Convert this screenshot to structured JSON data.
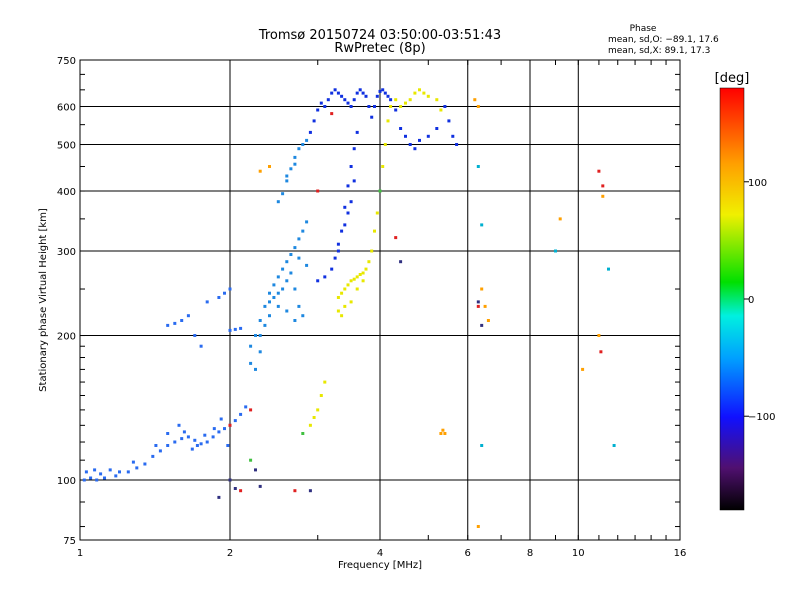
{
  "chart_data": {
    "type": "scatter",
    "title": "Tromsø 20150724 03:50:00-03:51:43",
    "subtitle": "RwPretec (8p)",
    "xlabel": "Frequency [MHz]",
    "ylabel": "Stationary phase Virtual Height [km]",
    "x_scale": "log",
    "y_scale": "log",
    "xlim": [
      1,
      16
    ],
    "ylim": [
      75,
      750
    ],
    "x_ticks": [
      1,
      2,
      4,
      6,
      8,
      10,
      16
    ],
    "y_ticks": [
      75,
      100,
      200,
      300,
      400,
      500,
      600,
      750
    ],
    "x_tick_labels": [
      "1",
      "2",
      "4",
      "6",
      "8",
      "10",
      "16"
    ],
    "y_tick_labels": [
      "75",
      "100",
      "200",
      "300",
      "400",
      "500",
      "600",
      "750"
    ],
    "grid": true,
    "phase_info": {
      "title": "Phase",
      "line_o": "mean, sd,O: −89.1, 17.6",
      "line_x": "mean, sd,X:  89.1, 17.3"
    },
    "colorbar": {
      "label": "[deg]",
      "range": [
        -180,
        180
      ],
      "ticks": [
        100,
        0,
        -100
      ],
      "tick_labels": [
        "100",
        "0",
        "−100"
      ]
    },
    "series": [
      {
        "color": "#2a6bf0",
        "points": [
          [
            1.02,
            100
          ],
          [
            1.05,
            101
          ],
          [
            1.08,
            100
          ],
          [
            1.12,
            101
          ],
          [
            1.18,
            102
          ],
          [
            1.25,
            104
          ],
          [
            1.3,
            106
          ],
          [
            1.35,
            108
          ],
          [
            1.4,
            112
          ],
          [
            1.45,
            115
          ],
          [
            1.5,
            118
          ],
          [
            1.55,
            120
          ],
          [
            1.6,
            122
          ],
          [
            1.65,
            123
          ],
          [
            1.7,
            121
          ],
          [
            1.75,
            119
          ],
          [
            1.8,
            120
          ],
          [
            1.85,
            123
          ],
          [
            1.9,
            126
          ],
          [
            1.95,
            128
          ],
          [
            2.0,
            130
          ],
          [
            2.05,
            133
          ],
          [
            2.1,
            137
          ],
          [
            2.15,
            142
          ],
          [
            1.03,
            104
          ],
          [
            1.07,
            105
          ],
          [
            1.1,
            103
          ],
          [
            1.15,
            105
          ],
          [
            1.2,
            104
          ],
          [
            1.28,
            109
          ],
          [
            1.42,
            118
          ],
          [
            1.5,
            125
          ],
          [
            1.58,
            130
          ],
          [
            1.62,
            126
          ],
          [
            1.68,
            116
          ],
          [
            1.72,
            118
          ],
          [
            1.78,
            124
          ],
          [
            1.86,
            128
          ],
          [
            1.92,
            134
          ],
          [
            1.98,
            118
          ],
          [
            1.5,
            210
          ],
          [
            1.55,
            212
          ],
          [
            1.6,
            215
          ],
          [
            1.65,
            220
          ],
          [
            1.7,
            200
          ],
          [
            1.75,
            190
          ],
          [
            1.8,
            235
          ],
          [
            1.9,
            240
          ],
          [
            1.95,
            245
          ],
          [
            2.0,
            250
          ],
          [
            2.0,
            205
          ],
          [
            2.05,
            206
          ],
          [
            2.1,
            207
          ]
        ]
      },
      {
        "color": "#1e88e0",
        "points": [
          [
            2.2,
            190
          ],
          [
            2.25,
            200
          ],
          [
            2.3,
            215
          ],
          [
            2.35,
            230
          ],
          [
            2.4,
            245
          ],
          [
            2.45,
            255
          ],
          [
            2.5,
            265
          ],
          [
            2.55,
            275
          ],
          [
            2.6,
            285
          ],
          [
            2.65,
            295
          ],
          [
            2.7,
            305
          ],
          [
            2.75,
            318
          ],
          [
            2.8,
            330
          ],
          [
            2.85,
            345
          ],
          [
            2.2,
            175
          ],
          [
            2.25,
            170
          ],
          [
            2.3,
            185
          ],
          [
            2.35,
            210
          ],
          [
            2.4,
            220
          ],
          [
            2.45,
            240
          ],
          [
            2.5,
            230
          ],
          [
            2.55,
            250
          ],
          [
            2.6,
            260
          ],
          [
            2.65,
            270
          ],
          [
            2.7,
            250
          ],
          [
            2.75,
            230
          ],
          [
            2.8,
            220
          ],
          [
            2.85,
            280
          ],
          [
            2.3,
            200
          ],
          [
            2.4,
            235
          ],
          [
            2.5,
            245
          ],
          [
            2.6,
            225
          ],
          [
            2.7,
            215
          ],
          [
            2.75,
            290
          ],
          [
            2.5,
            380
          ],
          [
            2.55,
            395
          ],
          [
            2.6,
            420
          ],
          [
            2.65,
            445
          ],
          [
            2.7,
            470
          ],
          [
            2.75,
            490
          ],
          [
            2.8,
            500
          ],
          [
            2.85,
            510
          ],
          [
            2.6,
            430
          ],
          [
            2.7,
            455
          ]
        ]
      },
      {
        "color": "#1030e0",
        "points": [
          [
            2.9,
            530
          ],
          [
            2.95,
            560
          ],
          [
            3.0,
            590
          ],
          [
            3.05,
            610
          ],
          [
            3.1,
            600
          ],
          [
            3.15,
            620
          ],
          [
            3.2,
            640
          ],
          [
            3.25,
            650
          ],
          [
            3.3,
            640
          ],
          [
            3.35,
            630
          ],
          [
            3.4,
            620
          ],
          [
            3.45,
            610
          ],
          [
            3.5,
            600
          ],
          [
            3.55,
            620
          ],
          [
            3.6,
            640
          ],
          [
            3.65,
            650
          ],
          [
            3.7,
            640
          ],
          [
            3.75,
            630
          ],
          [
            3.8,
            600
          ],
          [
            3.85,
            570
          ],
          [
            3.9,
            600
          ],
          [
            3.95,
            630
          ],
          [
            4.0,
            645
          ],
          [
            4.05,
            650
          ],
          [
            4.1,
            640
          ],
          [
            4.15,
            630
          ],
          [
            4.2,
            620
          ],
          [
            4.3,
            590
          ],
          [
            4.4,
            540
          ],
          [
            4.5,
            520
          ],
          [
            4.6,
            500
          ],
          [
            4.7,
            490
          ],
          [
            4.8,
            510
          ],
          [
            5.0,
            520
          ],
          [
            5.2,
            540
          ],
          [
            5.4,
            600
          ],
          [
            5.5,
            560
          ],
          [
            5.6,
            520
          ],
          [
            5.7,
            500
          ],
          [
            3.0,
            260
          ],
          [
            3.1,
            265
          ],
          [
            3.2,
            275
          ],
          [
            3.3,
            300
          ],
          [
            3.35,
            330
          ],
          [
            3.4,
            370
          ],
          [
            3.45,
            410
          ],
          [
            3.5,
            450
          ],
          [
            3.55,
            490
          ],
          [
            3.6,
            530
          ],
          [
            3.4,
            340
          ],
          [
            3.45,
            360
          ],
          [
            3.5,
            380
          ],
          [
            3.55,
            420
          ],
          [
            3.3,
            310
          ],
          [
            3.25,
            290
          ]
        ]
      },
      {
        "color": "#e8e800",
        "points": [
          [
            3.3,
            240
          ],
          [
            3.35,
            245
          ],
          [
            3.4,
            250
          ],
          [
            3.45,
            255
          ],
          [
            3.5,
            260
          ],
          [
            3.55,
            262
          ],
          [
            3.6,
            265
          ],
          [
            3.65,
            268
          ],
          [
            3.7,
            270
          ],
          [
            3.75,
            275
          ],
          [
            3.8,
            285
          ],
          [
            3.85,
            300
          ],
          [
            3.9,
            330
          ],
          [
            3.95,
            360
          ],
          [
            4.0,
            400
          ],
          [
            4.05,
            450
          ],
          [
            4.1,
            500
          ],
          [
            4.15,
            560
          ],
          [
            4.2,
            600
          ],
          [
            4.3,
            620
          ],
          [
            4.4,
            600
          ],
          [
            4.5,
            610
          ],
          [
            4.6,
            620
          ],
          [
            4.7,
            640
          ],
          [
            4.8,
            650
          ],
          [
            4.9,
            640
          ],
          [
            5.0,
            630
          ],
          [
            5.2,
            620
          ],
          [
            5.3,
            590
          ],
          [
            3.4,
            230
          ],
          [
            3.5,
            235
          ],
          [
            3.6,
            250
          ],
          [
            3.7,
            260
          ],
          [
            3.35,
            220
          ],
          [
            3.3,
            225
          ],
          [
            3.0,
            140
          ],
          [
            2.95,
            135
          ],
          [
            2.9,
            130
          ],
          [
            3.05,
            150
          ],
          [
            3.1,
            160
          ]
        ]
      },
      {
        "color": "#ffa000",
        "points": [
          [
            2.3,
            440
          ],
          [
            2.4,
            450
          ],
          [
            5.3,
            125
          ],
          [
            5.35,
            127
          ],
          [
            5.4,
            125
          ],
          [
            6.2,
            620
          ],
          [
            6.3,
            600
          ],
          [
            6.4,
            250
          ],
          [
            6.5,
            230
          ],
          [
            6.6,
            215
          ],
          [
            6.3,
            80
          ],
          [
            9.2,
            350
          ],
          [
            10.2,
            170
          ],
          [
            11.0,
            200
          ],
          [
            11.2,
            390
          ]
        ]
      },
      {
        "color": "#e02020",
        "points": [
          [
            2.0,
            130
          ],
          [
            2.1,
            95
          ],
          [
            2.2,
            140
          ],
          [
            2.7,
            95
          ],
          [
            3.2,
            580
          ],
          [
            3.0,
            400
          ],
          [
            4.3,
            320
          ],
          [
            6.3,
            230
          ],
          [
            11.0,
            440
          ],
          [
            11.2,
            410
          ],
          [
            11.1,
            185
          ]
        ]
      },
      {
        "color": "#00b0d0",
        "points": [
          [
            6.3,
            450
          ],
          [
            6.4,
            340
          ],
          [
            11.5,
            275
          ],
          [
            11.8,
            118
          ],
          [
            9.0,
            300
          ],
          [
            6.4,
            118
          ]
        ]
      },
      {
        "color": "#303080",
        "points": [
          [
            1.9,
            92
          ],
          [
            2.0,
            100
          ],
          [
            2.05,
            96
          ],
          [
            2.25,
            105
          ],
          [
            2.3,
            97
          ],
          [
            2.9,
            95
          ],
          [
            4.4,
            285
          ],
          [
            6.3,
            235
          ],
          [
            6.4,
            210
          ]
        ]
      },
      {
        "color": "#40c040",
        "points": [
          [
            2.2,
            110
          ],
          [
            2.8,
            125
          ],
          [
            4.0,
            400
          ]
        ]
      }
    ]
  }
}
